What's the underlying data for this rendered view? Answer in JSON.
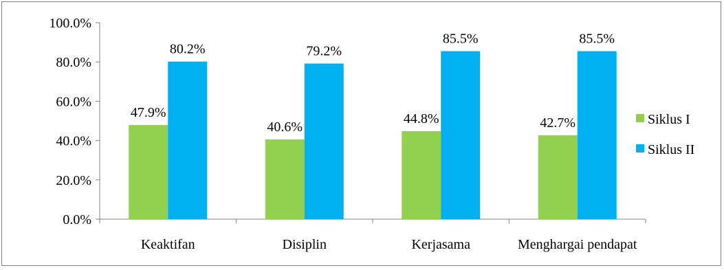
{
  "chart_data": {
    "type": "bar",
    "title": "",
    "xlabel": "",
    "ylabel": "",
    "categories": [
      "Keaktifan",
      "Disiplin",
      "Kerjasama",
      "Menghargai pendapat"
    ],
    "series": [
      {
        "name": "Siklus I",
        "values": [
          47.9,
          40.6,
          44.8,
          42.7
        ],
        "labels": [
          "47.9%",
          "40.6%",
          "44.8%",
          "42.7%"
        ],
        "color": "#92d050"
      },
      {
        "name": "Siklus II",
        "values": [
          80.2,
          79.2,
          85.5,
          85.5
        ],
        "labels": [
          "80.2%",
          "79.2%",
          "85.5%",
          "85.5%"
        ],
        "color": "#00b0f0"
      }
    ],
    "ylim": [
      0,
      100
    ],
    "yticks": [
      "0.0%",
      "20.0%",
      "40.0%",
      "60.0%",
      "80.0%",
      "100.0%"
    ],
    "grid": false,
    "legend_position": "right"
  }
}
